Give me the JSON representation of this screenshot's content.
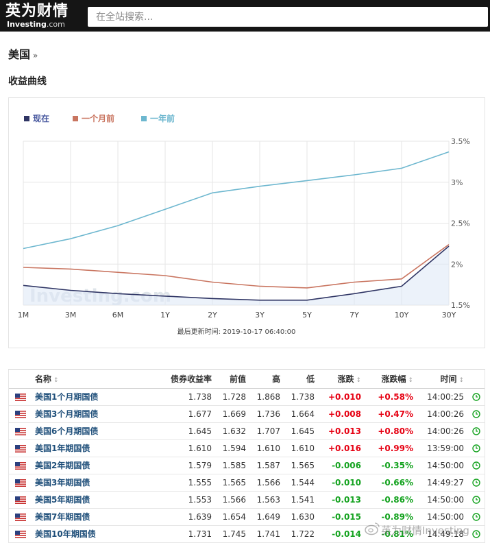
{
  "header": {
    "logo_cn": "英为财情",
    "logo_en": "Investing",
    "logo_domain": ".com",
    "search_placeholder": "在全站搜索..."
  },
  "page": {
    "country": "美国",
    "breadcrumb_arrow": "»",
    "section_title": "收益曲线"
  },
  "chart_data": {
    "type": "line",
    "x": [
      "1M",
      "3M",
      "6M",
      "1Y",
      "2Y",
      "3Y",
      "5Y",
      "7Y",
      "10Y",
      "30Y"
    ],
    "y_ticks": [
      "1.5%",
      "2%",
      "2.5%",
      "3%",
      "3.5%"
    ],
    "ylim": [
      1.5,
      3.5
    ],
    "legend_position": "top-left",
    "grid": true,
    "watermark": "Investing.com",
    "footer_label": "最后更新时间: 2019-10-17 06:40:00",
    "series": [
      {
        "name": "现在",
        "color": "#2f3564",
        "values": [
          1.74,
          1.68,
          1.64,
          1.61,
          1.58,
          1.56,
          1.56,
          1.64,
          1.73,
          2.22
        ]
      },
      {
        "name": "一个月前",
        "color": "#c97560",
        "values": [
          1.96,
          1.94,
          1.9,
          1.86,
          1.78,
          1.73,
          1.71,
          1.78,
          1.82,
          2.24
        ]
      },
      {
        "name": "一年前",
        "color": "#6db7cf",
        "values": [
          2.19,
          2.31,
          2.47,
          2.67,
          2.87,
          2.95,
          3.02,
          3.09,
          3.17,
          3.37
        ]
      }
    ]
  },
  "table": {
    "headers": {
      "name": "名称",
      "yield": "债券收益率",
      "prev": "前值",
      "high": "高",
      "low": "低",
      "chg": "涨跌",
      "chg_pct": "涨跌幅",
      "time": "时间"
    },
    "rows": [
      {
        "name": "美国1个月期国债",
        "yield": "1.738",
        "prev": "1.728",
        "high": "1.868",
        "low": "1.738",
        "chg": "+0.010",
        "chg_pct": "+0.58%",
        "time": "14:00:25",
        "dir": "up"
      },
      {
        "name": "美国3个月期国债",
        "yield": "1.677",
        "prev": "1.669",
        "high": "1.736",
        "low": "1.664",
        "chg": "+0.008",
        "chg_pct": "+0.47%",
        "time": "14:00:26",
        "dir": "up"
      },
      {
        "name": "美国6个月期国债",
        "yield": "1.645",
        "prev": "1.632",
        "high": "1.707",
        "low": "1.645",
        "chg": "+0.013",
        "chg_pct": "+0.80%",
        "time": "14:00:26",
        "dir": "up"
      },
      {
        "name": "美国1年期国债",
        "yield": "1.610",
        "prev": "1.594",
        "high": "1.610",
        "low": "1.610",
        "chg": "+0.016",
        "chg_pct": "+0.99%",
        "time": "13:59:00",
        "dir": "up"
      },
      {
        "name": "美国2年期国债",
        "yield": "1.579",
        "prev": "1.585",
        "high": "1.587",
        "low": "1.565",
        "chg": "-0.006",
        "chg_pct": "-0.35%",
        "time": "14:50:00",
        "dir": "down"
      },
      {
        "name": "美国3年期国债",
        "yield": "1.555",
        "prev": "1.565",
        "high": "1.566",
        "low": "1.544",
        "chg": "-0.010",
        "chg_pct": "-0.66%",
        "time": "14:49:27",
        "dir": "down"
      },
      {
        "name": "美国5年期国债",
        "yield": "1.553",
        "prev": "1.566",
        "high": "1.563",
        "low": "1.541",
        "chg": "-0.013",
        "chg_pct": "-0.86%",
        "time": "14:50:00",
        "dir": "down"
      },
      {
        "name": "美国7年期国债",
        "yield": "1.639",
        "prev": "1.654",
        "high": "1.649",
        "low": "1.630",
        "chg": "-0.015",
        "chg_pct": "-0.89%",
        "time": "14:50:00",
        "dir": "down"
      },
      {
        "name": "美国10年期国债",
        "yield": "1.731",
        "prev": "1.745",
        "high": "1.741",
        "low": "1.722",
        "chg": "-0.014",
        "chg_pct": "-0.81%",
        "time": "14:49:18",
        "dir": "down"
      }
    ]
  },
  "watermark": "英为财情Investing",
  "colors": {
    "up": "#e60012",
    "down": "#13a21e",
    "link": "#1f4f7a",
    "header_bg": "#151515"
  }
}
